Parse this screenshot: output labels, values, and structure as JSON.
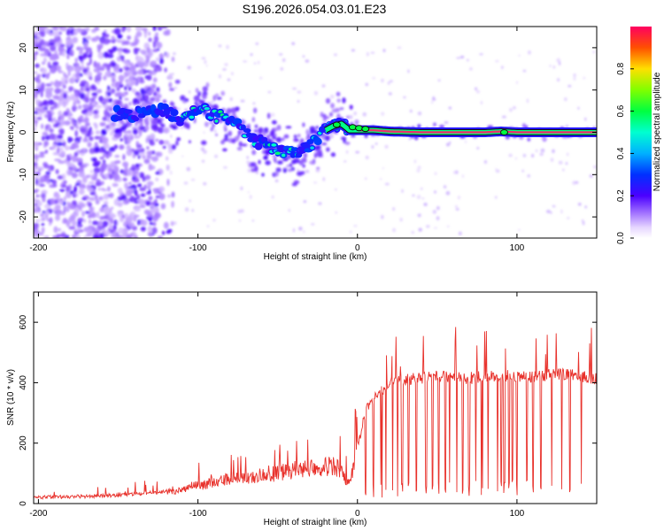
{
  "title": "S196.2026.054.03.01.E23",
  "colors": {
    "line": "#e8312b",
    "axis": "#000000",
    "ridge": "#e8316b"
  },
  "chart_data": [
    {
      "type": "heatmap",
      "title": "S196.2026.054.03.01.E23",
      "xlabel": "Height of straight line (km)",
      "ylabel": "Frequency (Hz)",
      "xlim": [
        -203,
        150
      ],
      "ylim": [
        -25,
        25
      ],
      "xticks": [
        -200,
        -100,
        0,
        100
      ],
      "yticks": [
        -20,
        -10,
        0,
        10,
        20
      ],
      "colorbar": {
        "label": "Normalized spectral amplitude",
        "range": [
          0,
          1
        ],
        "ticks": [
          "0.0",
          "0.2",
          "0.4",
          "0.6",
          "0.8"
        ]
      },
      "ridge_x": [
        -150,
        -140,
        -130,
        -120,
        -110,
        -100,
        -90,
        -80,
        -70,
        -60,
        -50,
        -40,
        -30,
        -20,
        -15,
        -10,
        -5,
        0,
        10,
        20,
        40,
        60,
        80,
        90,
        100,
        120,
        150
      ],
      "ridge_y": [
        4.5,
        4.0,
        5.5,
        5.0,
        2.5,
        6.0,
        4.0,
        3.0,
        -0.5,
        -2.5,
        -4.0,
        -5.0,
        -3.0,
        0.5,
        1.5,
        2.0,
        0.5,
        0.5,
        0.5,
        0.2,
        0.0,
        0.0,
        0.0,
        0.2,
        0.0,
        0.0,
        0.0
      ]
    },
    {
      "type": "line",
      "xlabel": "Height of straight line (km)",
      "ylabel": "SNR (10 * v/v)",
      "xlim": [
        -203,
        150
      ],
      "ylim": [
        0,
        700
      ],
      "xticks": [
        -200,
        -100,
        0,
        100
      ],
      "yticks": [
        0,
        200,
        400,
        600
      ],
      "series": [
        {
          "name": "SNR",
          "x": [
            -203,
            -190,
            -170,
            -150,
            -130,
            -110,
            -100,
            -90,
            -80,
            -70,
            -60,
            -50,
            -40,
            -30,
            -20,
            -10,
            -5,
            0,
            5,
            10,
            15,
            20,
            30,
            40,
            50,
            60,
            70,
            80,
            90,
            100,
            110,
            120,
            130,
            140,
            150
          ],
          "y": [
            20,
            22,
            24,
            28,
            35,
            45,
            60,
            70,
            80,
            85,
            95,
            100,
            110,
            120,
            125,
            110,
            60,
            180,
            300,
            350,
            370,
            400,
            410,
            415,
            420,
            420,
            415,
            420,
            425,
            420,
            420,
            425,
            430,
            420,
            415
          ]
        }
      ]
    }
  ]
}
